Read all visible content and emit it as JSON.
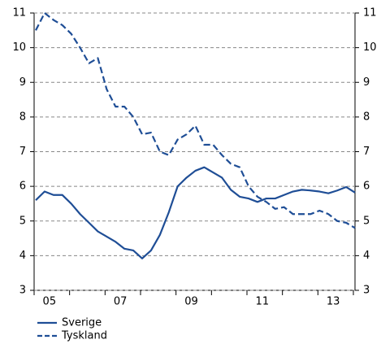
{
  "chart_data": {
    "type": "line",
    "categories": [
      null,
      null,
      "05",
      null,
      null,
      null,
      null,
      null,
      null,
      null,
      "07",
      null,
      null,
      null,
      null,
      null,
      null,
      null,
      "09",
      null,
      null,
      null,
      null,
      null,
      null,
      null,
      "11",
      null,
      null,
      null,
      null,
      null,
      null,
      null,
      "13",
      null,
      null
    ],
    "series": [
      {
        "name": "Sverige",
        "color": "#1f4e96",
        "dash": false,
        "values": [
          5.6,
          5.85,
          5.75,
          5.75,
          5.5,
          5.2,
          4.95,
          4.7,
          4.55,
          4.4,
          4.2,
          4.15,
          3.92,
          4.15,
          4.6,
          5.25,
          6.0,
          6.25,
          6.45,
          6.55,
          6.4,
          6.25,
          5.9,
          5.7,
          5.65,
          5.55,
          5.65,
          5.65,
          5.75,
          5.85,
          5.9,
          5.88,
          5.85,
          5.8,
          5.88,
          5.98,
          5.82
        ]
      },
      {
        "name": "Tyskland",
        "color": "#1f4e96",
        "dash": true,
        "values": [
          10.5,
          11.0,
          10.8,
          10.65,
          10.4,
          10.0,
          9.55,
          9.7,
          8.8,
          8.3,
          8.3,
          8.0,
          7.5,
          7.55,
          7.0,
          6.9,
          7.35,
          7.5,
          7.75,
          7.2,
          7.2,
          6.9,
          6.65,
          6.55,
          6.0,
          5.7,
          5.55,
          5.35,
          5.4,
          5.2,
          5.2,
          5.2,
          5.3,
          5.2,
          5.0,
          4.95,
          4.8
        ]
      }
    ],
    "ylim": [
      3,
      11
    ],
    "yticks": [
      3,
      4,
      5,
      6,
      7,
      8,
      9,
      10,
      11
    ],
    "y2lim": [
      3,
      11
    ],
    "y2ticks": [
      3,
      4,
      5,
      6,
      7,
      8,
      9,
      10,
      11
    ],
    "grid": true,
    "legend": "bottom-left"
  }
}
